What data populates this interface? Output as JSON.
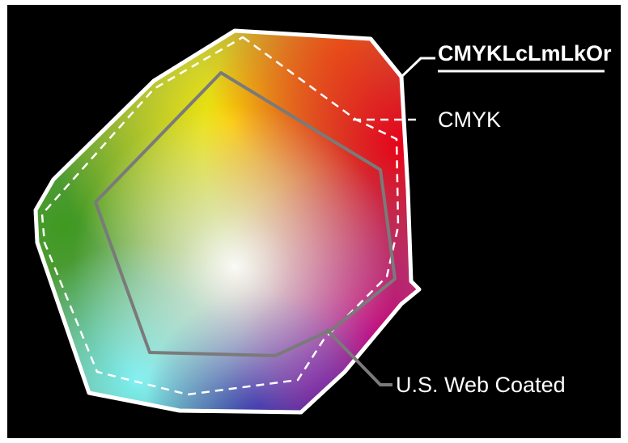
{
  "gamuts": [
    {
      "label": "CMYKLcLmLkOr",
      "outline_color": "#ffffff",
      "outline_style": "solid"
    },
    {
      "label": "CMYK",
      "outline_color": "#ffffff",
      "outline_style": "dashed"
    },
    {
      "label": "U.S. Web Coated",
      "outline_color": "#7a7a7a",
      "outline_style": "solid"
    }
  ],
  "background_color": "#000000"
}
